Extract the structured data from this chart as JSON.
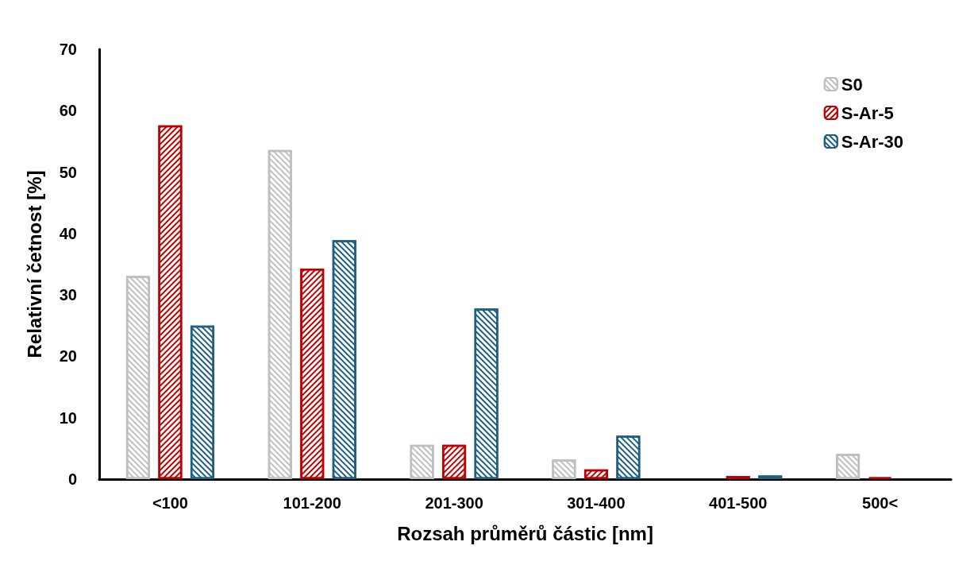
{
  "chart_data": {
    "type": "bar",
    "xlabel": "Rozsah průměrů částic [nm]",
    "ylabel": "Relativní četnost [%]",
    "categories": [
      "<100",
      "101-200",
      "201-300",
      "301-400",
      "401-500",
      "500<"
    ],
    "series": [
      {
        "name": "S0",
        "color": "#bfbfbf",
        "values": [
          33.1,
          53.6,
          5.6,
          3.2,
          null,
          4.1
        ]
      },
      {
        "name": "S-Ar-5",
        "color": "#c00000",
        "values": [
          57.6,
          34.3,
          5.6,
          1.6,
          0.5,
          0.3
        ]
      },
      {
        "name": "S-Ar-30",
        "color": "#1f5f80",
        "values": [
          25.0,
          38.9,
          27.8,
          7.1,
          0.6,
          null
        ]
      }
    ],
    "ylim": [
      0,
      70
    ],
    "yticks": [
      0,
      10,
      20,
      30,
      40,
      50,
      60,
      70
    ],
    "grid": false,
    "legend": "top right"
  }
}
